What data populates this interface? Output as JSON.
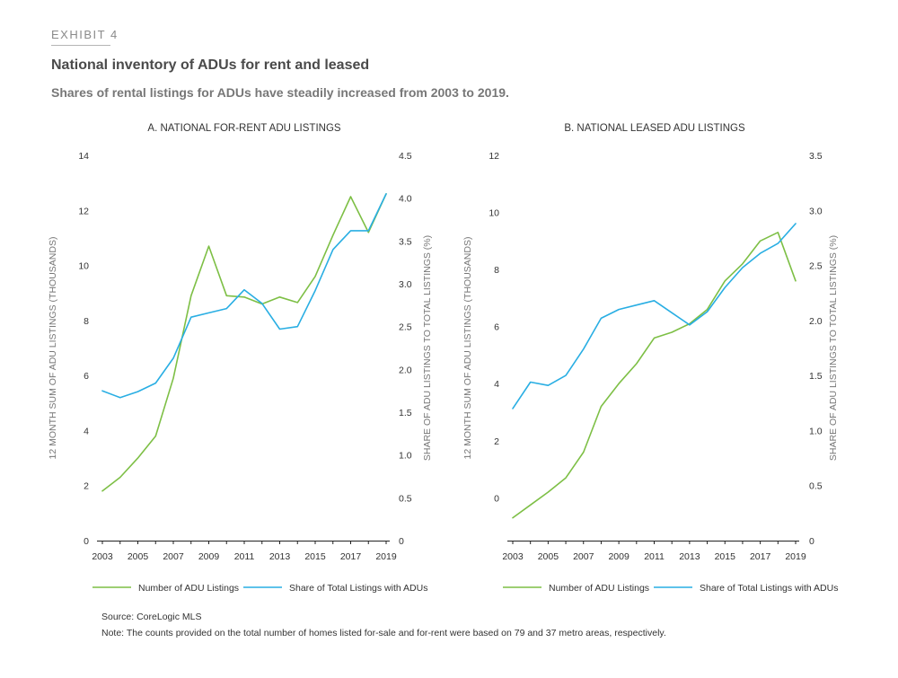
{
  "header": {
    "exhibit": "EXHIBIT 4",
    "title": "National inventory of ADUs for rent and leased",
    "subtitle": "Shares of rental listings for ADUs have steadily increased from 2003 to 2019."
  },
  "footer": {
    "source": "Source: CoreLogic MLS",
    "note": "Note: The counts provided on the total number of homes listed for-sale and for-rent were based on 79 and 37 metro areas, respectively."
  },
  "colors": {
    "green": "#7dbf45",
    "blue": "#29aee3"
  },
  "chart_data": [
    {
      "type": "line",
      "title": "A. NATIONAL FOR-RENT ADU LISTINGS",
      "ylabel_left": "12 MONTH SUM OF ADU LISTINGS (THOUSANDS)",
      "ylabel_right": "SHARE OF ADU LISTINGS TO TOTAL LISTINGS (%)",
      "ylim_left": [
        0,
        14
      ],
      "ylim_right": [
        0,
        4.5
      ],
      "yticks_left": [
        0,
        2,
        4,
        6,
        8,
        10,
        12,
        14
      ],
      "yticks_right": [
        0,
        0.5,
        1.0,
        1.5,
        2.0,
        2.5,
        3.0,
        3.5,
        4.0,
        4.5
      ],
      "ytick_labels_right": [
        "0",
        "0.5",
        "1.0",
        "1.5",
        "2.0",
        "2.5",
        "3.0",
        "3.5",
        "4.0",
        "4.5"
      ],
      "x": [
        2003,
        2004,
        2005,
        2006,
        2007,
        2008,
        2009,
        2010,
        2011,
        2012,
        2013,
        2014,
        2015,
        2016,
        2017,
        2018,
        2019
      ],
      "xticks": [
        2003,
        2005,
        2007,
        2009,
        2011,
        2013,
        2015,
        2017,
        2019
      ],
      "legend": "bottom",
      "grid": false,
      "series": [
        {
          "name": "Number of ADU Listings",
          "axis": "left",
          "color": "#7dbf45",
          "values": [
            1.8,
            2.3,
            3.0,
            3.8,
            5.9,
            8.9,
            10.7,
            8.9,
            8.85,
            8.6,
            8.85,
            8.65,
            9.6,
            11.1,
            12.5,
            11.2,
            12.6
          ]
        },
        {
          "name": "Share of Total Listings with ADUs",
          "axis": "right",
          "color": "#29aee3",
          "values": [
            1.75,
            1.67,
            1.74,
            1.84,
            2.13,
            2.61,
            2.66,
            2.71,
            2.93,
            2.77,
            2.47,
            2.5,
            2.92,
            3.4,
            3.62,
            3.62,
            4.05
          ]
        }
      ]
    },
    {
      "type": "line",
      "title": "B. NATIONAL LEASED ADU LISTINGS",
      "ylabel_left": "12 MONTH SUM OF ADU LISTINGS (THOUSANDS)",
      "ylabel_right": "SHARE OF ADU LISTINGS TO TOTAL LISTINGS (%)",
      "ylim_left": [
        -1.5,
        12
      ],
      "ylim_right": [
        0,
        3.5
      ],
      "yticks_left": [
        0,
        2,
        4,
        6,
        8,
        10,
        12
      ],
      "yticks_right": [
        0,
        0.5,
        1.0,
        1.5,
        2.0,
        2.5,
        3.0,
        3.5
      ],
      "ytick_labels_right": [
        "0",
        "0.5",
        "1.0",
        "1.5",
        "2.0",
        "2.5",
        "3.0",
        "3.5"
      ],
      "x": [
        2003,
        2004,
        2005,
        2006,
        2007,
        2008,
        2009,
        2010,
        2011,
        2012,
        2013,
        2014,
        2015,
        2016,
        2017,
        2018,
        2019
      ],
      "xticks": [
        2003,
        2005,
        2007,
        2009,
        2011,
        2013,
        2015,
        2017,
        2019
      ],
      "legend": "bottom",
      "grid": false,
      "series": [
        {
          "name": "Number of ADU Listings",
          "axis": "left",
          "color": "#7dbf45",
          "values": [
            -0.7,
            -0.25,
            0.2,
            0.7,
            1.6,
            3.2,
            4.0,
            4.7,
            5.6,
            5.8,
            6.1,
            6.6,
            7.6,
            8.2,
            9.0,
            9.3,
            7.6
          ]
        },
        {
          "name": "Share of Total Listings with ADUs",
          "axis": "right",
          "color": "#29aee3",
          "values": [
            1.2,
            1.44,
            1.41,
            1.5,
            1.74,
            2.02,
            2.1,
            2.14,
            2.18,
            2.07,
            1.96,
            2.08,
            2.3,
            2.48,
            2.61,
            2.7,
            2.88
          ]
        }
      ]
    }
  ]
}
